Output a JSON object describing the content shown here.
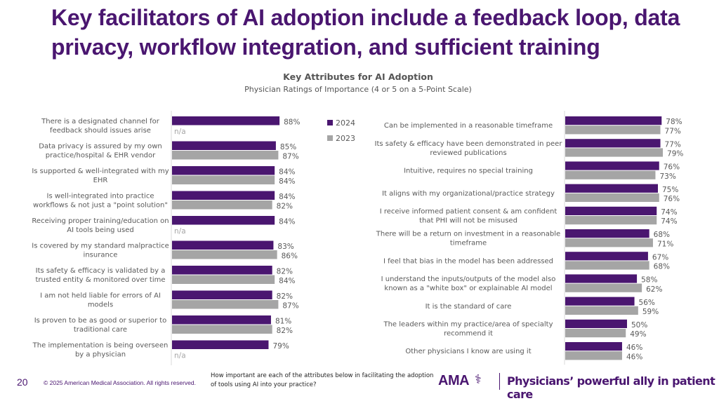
{
  "slide": {
    "title": "Key facilitators of AI adoption include a feedback loop, data privacy, workflow integration, and sufficient training",
    "page_number": "20",
    "copyright": "© 2025 American Medical Association. All rights reserved.",
    "question": "How important are each of the attributes below in facilitating the adoption of tools using AI into your practice?",
    "logo_text": "AMA",
    "logo_icon": "caduceus-icon",
    "tagline": "Physicians’ powerful ally in patient care"
  },
  "colors": {
    "series_2024": "#4a1670",
    "series_2023": "#a5a5a5",
    "brand": "#4a1670"
  },
  "chart_data": [
    {
      "type": "bar",
      "orientation": "horizontal",
      "title": "Key Attributes for AI Adoption",
      "subtitle": "Physician Ratings of Importance (4 or 5 on a 5-Point Scale)",
      "legend": {
        "placement": "top-right of left panel",
        "entries": [
          "2024",
          "2023"
        ]
      },
      "xlim": [
        0,
        100
      ],
      "value_suffix": "%",
      "na_label": "n/a",
      "categories": [
        "There is a designated channel for feedback should issues arise",
        "Data privacy is assured by my own practice/hospital & EHR vendor",
        "Is supported & well-integrated with my EHR",
        "Is well-integrated into practice workflows & not just a \"point solution\"",
        "Receiving proper training/education on AI tools being used",
        "Is covered by my standard malpractice insurance",
        "Its safety & efficacy is validated by a trusted entity & monitored over time",
        "I am not held liable for errors of AI models",
        "Is proven to be as good or superior to traditional care",
        "The implementation is being overseen by a physician"
      ],
      "category_lines": [
        [
          "There is a designated channel for",
          "feedback should issues arise"
        ],
        [
          "Data privacy is assured by my own",
          "practice/hospital & EHR vendor"
        ],
        [
          "Is supported & well-integrated with my",
          "EHR"
        ],
        [
          "Is well-integrated into practice",
          "workflows & not just a \"point solution\""
        ],
        [
          "Receiving proper training/education on",
          "AI tools being used"
        ],
        [
          "Is covered by my standard malpractice",
          "insurance"
        ],
        [
          "Its safety & efficacy is validated by a",
          "trusted entity & monitored over time"
        ],
        [
          "I am not held liable for errors of AI",
          "models"
        ],
        [
          "Is proven to be as good or superior to",
          "traditional care"
        ],
        [
          "The implementation is being overseen",
          "by a physician"
        ]
      ],
      "series": [
        {
          "name": "2024",
          "values": [
            88,
            85,
            84,
            84,
            84,
            83,
            82,
            82,
            81,
            79
          ]
        },
        {
          "name": "2023",
          "values": [
            null,
            87,
            84,
            82,
            null,
            86,
            84,
            87,
            82,
            null
          ]
        }
      ]
    },
    {
      "type": "bar",
      "orientation": "horizontal",
      "xlim": [
        0,
        100
      ],
      "value_suffix": "%",
      "categories": [
        "Can be implemented in a reasonable timeframe",
        "Its safety & efficacy have been demonstrated in peer reviewed publications",
        "Intuitive, requires no special training",
        "It aligns with my organizational/practice strategy",
        "I receive informed patient consent & am confident that PHI will not be misused",
        "There will be a return on investment in a reasonable timeframe",
        "I feel that bias in the model has been addressed",
        "I understand the inputs/outputs of the model also known as a \"white box\" or explainable AI model",
        "It is the standard of care",
        "The leaders within my practice/area of specialty recommend it",
        "Other physicians I know are using it"
      ],
      "category_lines": [
        [
          "Can be implemented in a reasonable timeframe"
        ],
        [
          "Its safety & efficacy have been demonstrated in peer",
          "reviewed publications"
        ],
        [
          "Intuitive, requires no special training"
        ],
        [
          "It aligns with my organizational/practice strategy"
        ],
        [
          "I receive informed patient consent & am confident",
          "that PHI will not be misused"
        ],
        [
          "There will be a return on investment in a reasonable",
          "timeframe"
        ],
        [
          "I feel that bias in the model has been addressed"
        ],
        [
          "I understand the inputs/outputs of the model also",
          "known as a \"white box\" or explainable AI model"
        ],
        [
          "It is the standard of care"
        ],
        [
          "The leaders within my practice/area of specialty",
          "recommend it"
        ],
        [
          "Other physicians I know are using it"
        ]
      ],
      "series": [
        {
          "name": "2024",
          "values": [
            78,
            77,
            76,
            75,
            74,
            68,
            67,
            58,
            56,
            50,
            46
          ]
        },
        {
          "name": "2023",
          "values": [
            77,
            79,
            73,
            76,
            74,
            71,
            68,
            62,
            59,
            49,
            46
          ]
        }
      ]
    }
  ]
}
